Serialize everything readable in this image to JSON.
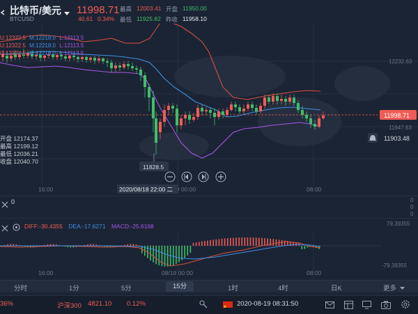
{
  "header": {
    "title": "比特币/美元",
    "symbol": "BTCUSD",
    "last_price": "11998.71",
    "change": "40.61",
    "change_pct": "0.34%",
    "high_label": "最高",
    "high_value": "12003.41",
    "low_label": "最低",
    "low_value": "11925.82",
    "open_label": "开盘",
    "open_value": "11950.00",
    "prev_close_label": "昨收",
    "prev_close_value": "11958.10"
  },
  "boll_legend": [
    {
      "u": "U:12322.5",
      "m": "M:12218.0",
      "l": "L:12113.5"
    },
    {
      "u": "U:12322.5",
      "m": "M:12218.0",
      "l": "L:12113.5"
    },
    {
      "u": "U:12322.5",
      "m": "M:12218.0",
      "l": "L:12113.5"
    }
  ],
  "ohlc_overlay": {
    "open": "开盘 12174.37",
    "high": "最高 12199.12",
    "low": "最低 12036.21",
    "close": "收盘 12040.70"
  },
  "price_axis": {
    "top": "12232.63",
    "current": "11998.71",
    "lower": "11947.63",
    "alert": "11903.48"
  },
  "low_marker": "11828.5",
  "crosshair_date": "2020/08/18 22:00 二",
  "time_axis_main": [
    "16:00",
    "19 00:00",
    "08:00"
  ],
  "sub1": {
    "label": "0",
    "axis": [
      "0",
      "0",
      "0"
    ]
  },
  "macd": {
    "diff": "DIFF:-30.4355",
    "dea": "DEA:-17.6271",
    "macd": "MACD:-25.6168",
    "axis_top": "79.39355",
    "axis_bottom": "-79.39355"
  },
  "time_axis_macd": [
    "16:00",
    "08/19 00:00",
    "08:00"
  ],
  "timeframes": [
    "分时",
    "1分",
    "5分",
    "15分",
    "1时",
    "4时",
    "日K",
    "更多"
  ],
  "active_timeframe": "15分",
  "status": {
    "left_pct": "36%",
    "index_name": "沪深300",
    "index_value": "4821.10",
    "index_pct": "0.12%",
    "datetime": "2020-08-19 08:31:50"
  },
  "colors": {
    "up": "#f05c55",
    "down": "#3fbe69",
    "boll_upper": "#d5503f",
    "boll_mid": "#3f8fe3",
    "boll_lower": "#a557e6",
    "background": "#1b2434"
  },
  "chart_data": {
    "type": "candlestick",
    "title": "",
    "series": [
      {
        "name": "BOLL",
        "values": []
      }
    ],
    "ylim": [
      11800,
      12400
    ]
  }
}
